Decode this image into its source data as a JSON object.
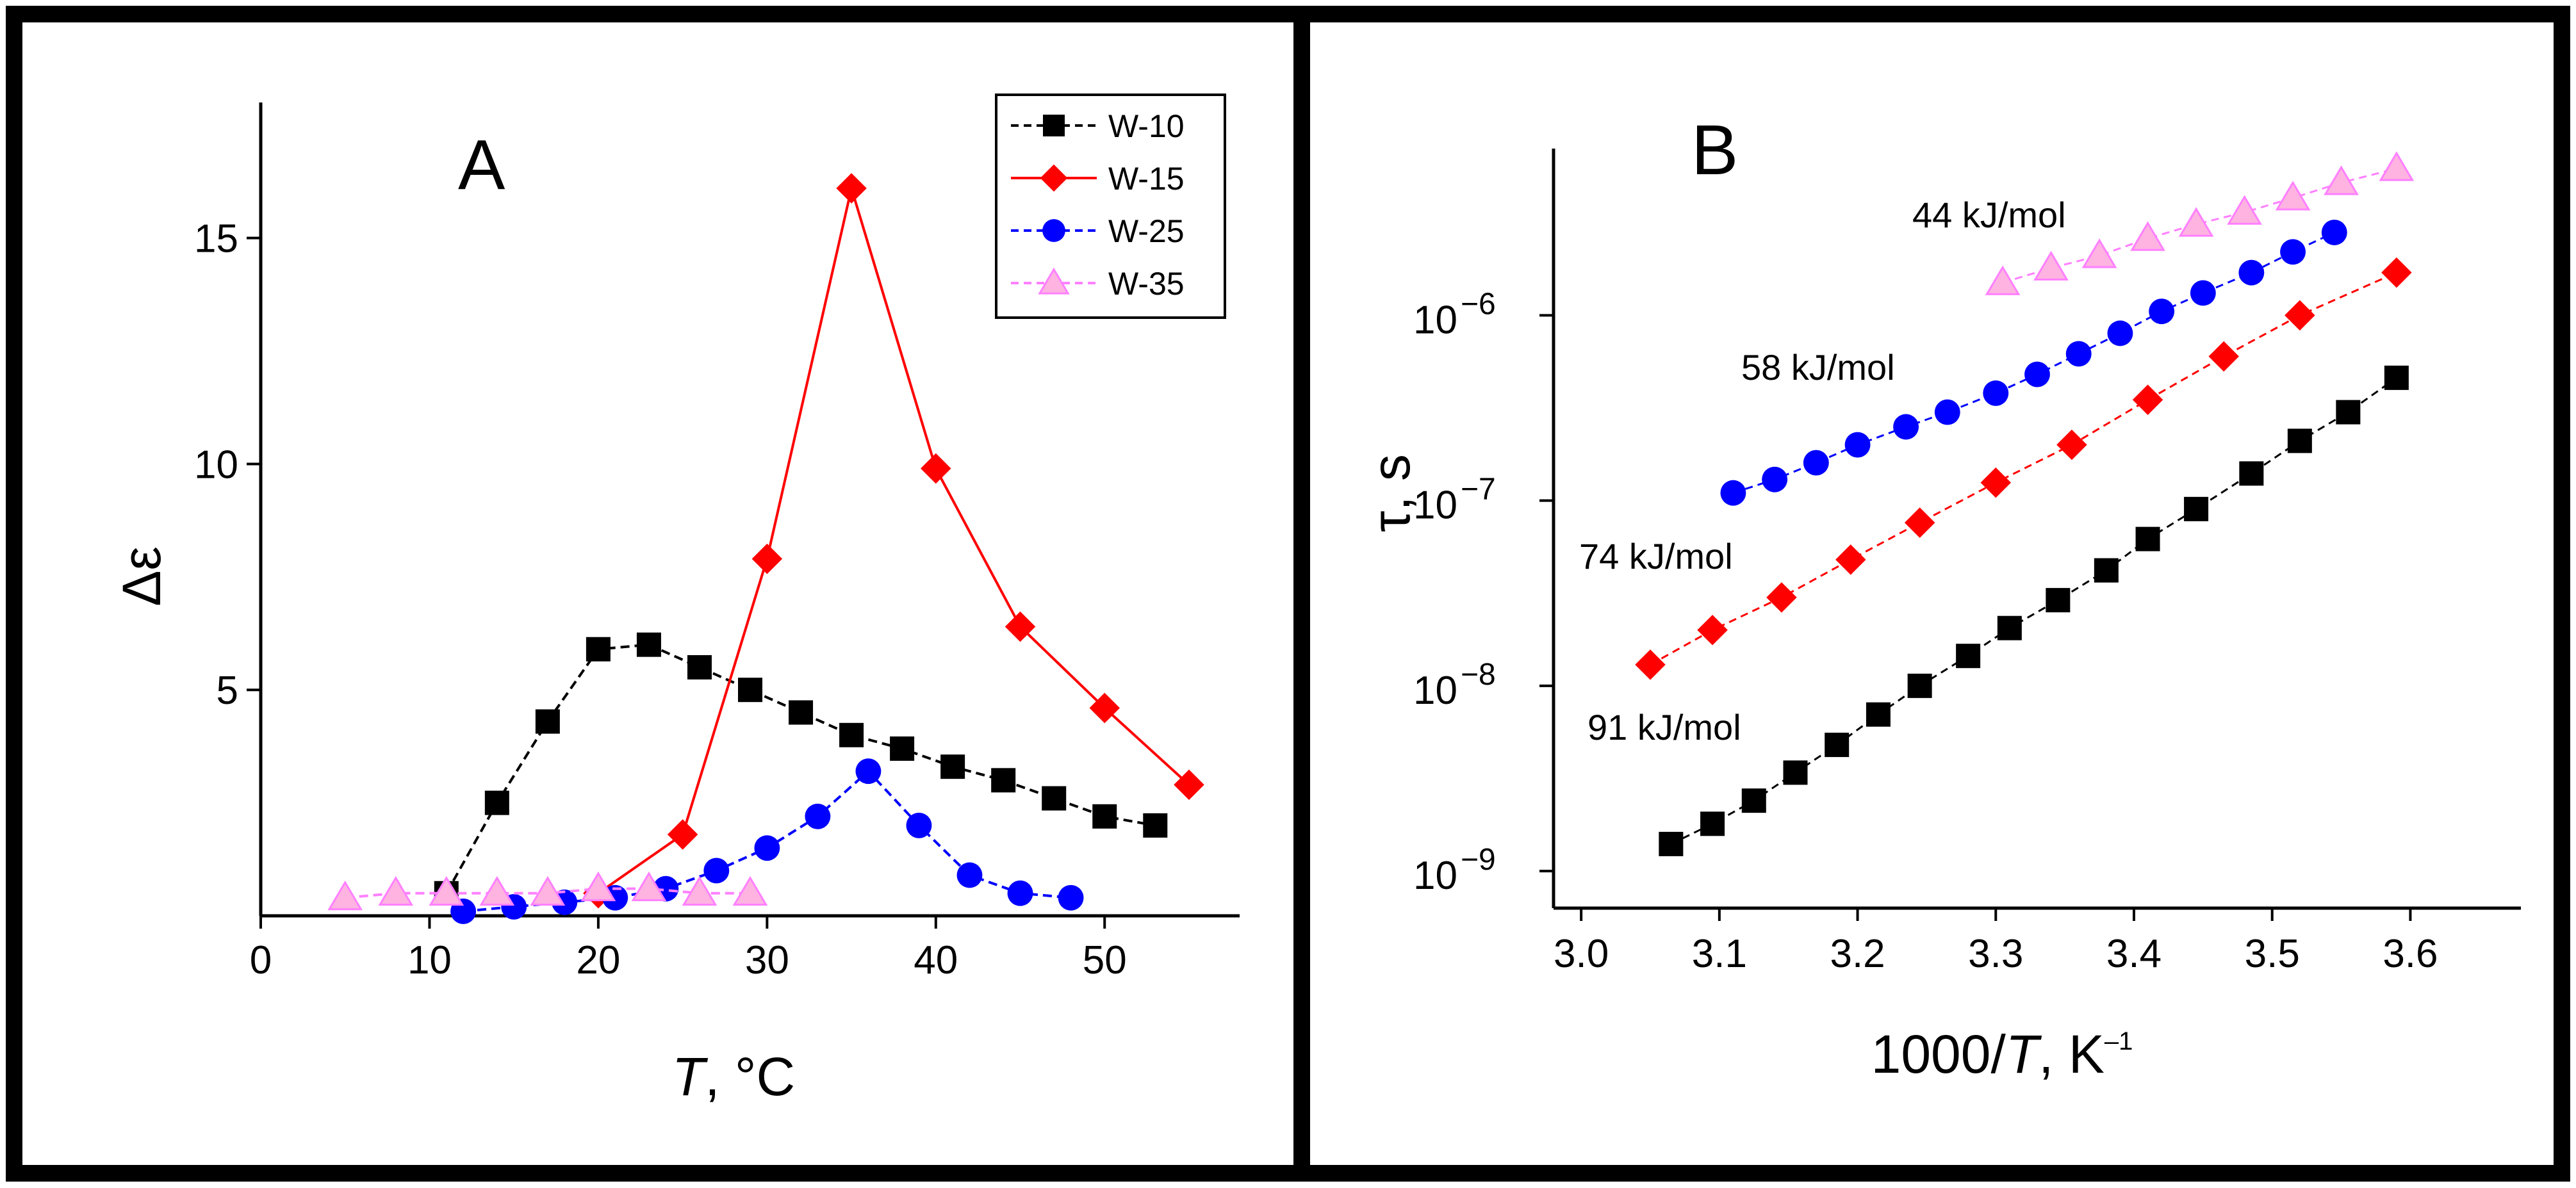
{
  "chart_data": [
    {
      "type": "line",
      "panel": "A",
      "title": "A",
      "xlabel_italic": "T",
      "xlabel_rest": ", °C",
      "ylabel": "Δε",
      "xlim": [
        0,
        58
      ],
      "ylim": [
        0,
        18
      ],
      "xticks": [
        0,
        10,
        20,
        30,
        40,
        50
      ],
      "yticks": [
        5,
        10,
        15
      ],
      "legend_position": "top-right",
      "series": [
        {
          "name": "W-10",
          "color": "#000000",
          "marker": "square",
          "x": [
            11,
            14,
            17,
            20,
            23,
            26,
            29,
            32,
            35,
            38,
            41,
            44,
            47,
            50,
            53
          ],
          "y": [
            0.5,
            2.5,
            4.3,
            5.9,
            6.0,
            5.5,
            5.0,
            4.5,
            4.0,
            3.7,
            3.3,
            3.0,
            2.6,
            2.2,
            2.0
          ]
        },
        {
          "name": "W-15",
          "color": "#ff0000",
          "marker": "diamond",
          "x": [
            20,
            25,
            30,
            35,
            40,
            45,
            50,
            55
          ],
          "y": [
            0.5,
            1.8,
            7.9,
            16.1,
            9.9,
            6.4,
            4.6,
            2.9
          ]
        },
        {
          "name": "W-25",
          "color": "#0000ff",
          "marker": "circle",
          "x": [
            12,
            15,
            18,
            21,
            24,
            27,
            30,
            33,
            36,
            39,
            42,
            45,
            48
          ],
          "y": [
            0.1,
            0.2,
            0.3,
            0.4,
            0.6,
            1.0,
            1.5,
            2.2,
            3.2,
            2.0,
            0.9,
            0.5,
            0.4
          ]
        },
        {
          "name": "W-35",
          "color": "#ff80ff",
          "fill": "#ffb3e0",
          "marker": "triangle",
          "x": [
            5,
            8,
            11,
            14,
            17,
            20,
            23,
            26,
            29
          ],
          "y": [
            0.4,
            0.5,
            0.5,
            0.5,
            0.5,
            0.6,
            0.6,
            0.5,
            0.5
          ]
        }
      ]
    },
    {
      "type": "scatter",
      "panel": "B",
      "title": "B",
      "xlabel_pre": "1000/",
      "xlabel_italic": "T",
      "xlabel_post": ", K",
      "xlabel_sup": "–1",
      "ylabel": "τ, s",
      "yscale": "log",
      "xlim": [
        2.98,
        3.68
      ],
      "ylim_log10": [
        -9.2,
        -5.1
      ],
      "xticks": [
        "3.0",
        "3.1",
        "3.2",
        "3.3",
        "3.4",
        "3.5",
        "3.6"
      ],
      "yticks": [
        {
          "base": "10",
          "exp": "−6",
          "log10": -6
        },
        {
          "base": "10",
          "exp": "−7",
          "log10": -7
        },
        {
          "base": "10",
          "exp": "−8",
          "log10": -8
        },
        {
          "base": "10",
          "exp": "−9",
          "log10": -9
        }
      ],
      "annotations": [
        "44 kJ/mol",
        "58 kJ/mol",
        "74 kJ/mol",
        "91 kJ/mol"
      ],
      "series": [
        {
          "name": "W-35",
          "label": "44 kJ/mol",
          "color": "#ff80ff",
          "fill": "#ffb3e0",
          "marker": "triangle",
          "x": [
            3.305,
            3.34,
            3.375,
            3.41,
            3.445,
            3.48,
            3.515,
            3.55,
            3.59
          ],
          "y": [
            1.5e-06,
            1.8e-06,
            2.1e-06,
            2.6e-06,
            3.1e-06,
            3.6e-06,
            4.3e-06,
            5.2e-06,
            6.2e-06
          ]
        },
        {
          "name": "W-25",
          "label": "58 kJ/mol",
          "color": "#0000ff",
          "marker": "circle",
          "x": [
            3.11,
            3.14,
            3.17,
            3.2,
            3.235,
            3.265,
            3.3,
            3.33,
            3.36,
            3.39,
            3.42,
            3.45,
            3.485,
            3.515,
            3.545
          ],
          "y": [
            1.1e-07,
            1.3e-07,
            1.6e-07,
            2e-07,
            2.5e-07,
            3e-07,
            3.8e-07,
            4.8e-07,
            6.2e-07,
            8e-07,
            1.05e-06,
            1.32e-06,
            1.7e-06,
            2.2e-06,
            2.8e-06
          ]
        },
        {
          "name": "W-15",
          "label": "74 kJ/mol",
          "color": "#ff0000",
          "marker": "diamond",
          "x": [
            3.05,
            3.095,
            3.145,
            3.195,
            3.245,
            3.3,
            3.355,
            3.41,
            3.465,
            3.52,
            3.59
          ],
          "y": [
            1.3e-08,
            2e-08,
            3e-08,
            4.8e-08,
            7.6e-08,
            1.25e-07,
            2e-07,
            3.5e-07,
            6e-07,
            1e-06,
            1.7e-06
          ]
        },
        {
          "name": "W-10",
          "label": "91 kJ/mol",
          "color": "#000000",
          "marker": "square",
          "x": [
            3.065,
            3.095,
            3.125,
            3.155,
            3.185,
            3.215,
            3.245,
            3.28,
            3.31,
            3.345,
            3.38,
            3.41,
            3.445,
            3.485,
            3.52,
            3.555,
            3.59
          ],
          "y": [
            1.4e-09,
            1.8e-09,
            2.4e-09,
            3.4e-09,
            4.8e-09,
            7e-09,
            1e-08,
            1.45e-08,
            2.05e-08,
            2.9e-08,
            4.2e-08,
            6.2e-08,
            9e-08,
            1.4e-07,
            2.1e-07,
            3e-07,
            4.6e-07
          ]
        }
      ]
    }
  ]
}
